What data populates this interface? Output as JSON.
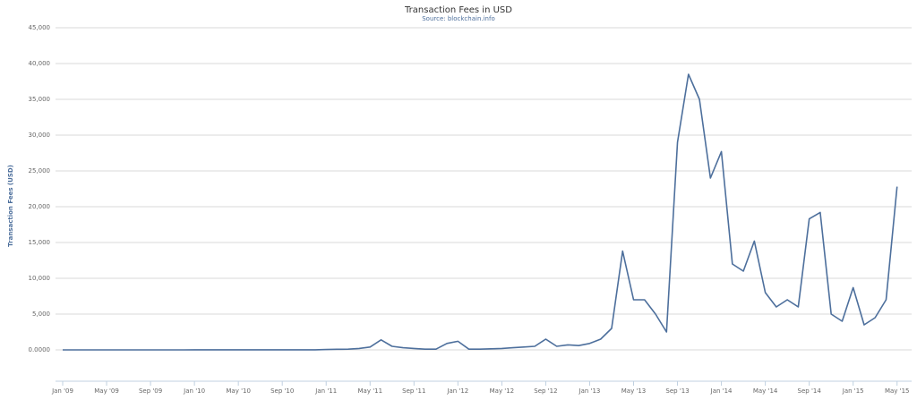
{
  "chart_data": {
    "type": "line",
    "title": "Transaction Fees in USD",
    "subtitle": "Source: blockchain.info",
    "y_label": "Transaction Fees (USD)",
    "color": "#4d6f9c",
    "grid": true,
    "xlim": [
      "2009-01",
      "2015-06"
    ],
    "ylim": [
      0,
      45000
    ],
    "yticks": [
      {
        "value": 0,
        "label": "0.0000"
      },
      {
        "value": 5000,
        "label": "5,000"
      },
      {
        "value": 10000,
        "label": "10,000"
      },
      {
        "value": 15000,
        "label": "15,000"
      },
      {
        "value": 20000,
        "label": "20,000"
      },
      {
        "value": 25000,
        "label": "25,000"
      },
      {
        "value": 30000,
        "label": "30,000"
      },
      {
        "value": 35000,
        "label": "35,000"
      },
      {
        "value": 40000,
        "label": "40,000"
      },
      {
        "value": 45000,
        "label": "45,000"
      }
    ],
    "xticks": [
      {
        "value": "2009-01",
        "label": "Jan '09"
      },
      {
        "value": "2009-05",
        "label": "May '09"
      },
      {
        "value": "2009-09",
        "label": "Sep '09"
      },
      {
        "value": "2010-01",
        "label": "Jan '10"
      },
      {
        "value": "2010-05",
        "label": "May '10"
      },
      {
        "value": "2010-09",
        "label": "Sep '10"
      },
      {
        "value": "2011-01",
        "label": "Jan '11"
      },
      {
        "value": "2011-05",
        "label": "May '11"
      },
      {
        "value": "2011-09",
        "label": "Sep '11"
      },
      {
        "value": "2012-01",
        "label": "Jan '12"
      },
      {
        "value": "2012-05",
        "label": "May '12"
      },
      {
        "value": "2012-09",
        "label": "Sep '12"
      },
      {
        "value": "2013-01",
        "label": "Jan '13"
      },
      {
        "value": "2013-05",
        "label": "May '13"
      },
      {
        "value": "2013-09",
        "label": "Sep '13"
      },
      {
        "value": "2014-01",
        "label": "Jan '14"
      },
      {
        "value": "2014-05",
        "label": "May '14"
      },
      {
        "value": "2014-09",
        "label": "Sep '14"
      },
      {
        "value": "2015-01",
        "label": "Jan '15"
      },
      {
        "value": "2015-05",
        "label": "May '15"
      }
    ],
    "x": [
      "2009-01",
      "2009-02",
      "2009-03",
      "2009-04",
      "2009-05",
      "2009-06",
      "2009-07",
      "2009-08",
      "2009-09",
      "2009-10",
      "2009-11",
      "2009-12",
      "2010-01",
      "2010-02",
      "2010-03",
      "2010-04",
      "2010-05",
      "2010-06",
      "2010-07",
      "2010-08",
      "2010-09",
      "2010-10",
      "2010-11",
      "2010-12",
      "2011-01",
      "2011-02",
      "2011-03",
      "2011-04",
      "2011-05",
      "2011-06",
      "2011-07",
      "2011-08",
      "2011-09",
      "2011-10",
      "2011-11",
      "2011-12",
      "2012-01",
      "2012-02",
      "2012-03",
      "2012-04",
      "2012-05",
      "2012-06",
      "2012-07",
      "2012-08",
      "2012-09",
      "2012-10",
      "2012-11",
      "2012-12",
      "2013-01",
      "2013-02",
      "2013-03",
      "2013-04",
      "2013-05",
      "2013-06",
      "2013-07",
      "2013-08",
      "2013-09",
      "2013-10",
      "2013-11",
      "2013-12",
      "2014-01",
      "2014-02",
      "2014-03",
      "2014-04",
      "2014-05",
      "2014-06",
      "2014-07",
      "2014-08",
      "2014-09",
      "2014-10",
      "2014-11",
      "2014-12",
      "2015-01",
      "2015-02",
      "2015-03",
      "2015-04",
      "2015-05"
    ],
    "values": [
      0,
      0,
      0,
      0,
      0,
      0,
      0,
      0,
      0,
      0,
      0,
      0,
      5,
      5,
      5,
      5,
      5,
      5,
      5,
      5,
      5,
      5,
      5,
      5,
      50,
      80,
      100,
      200,
      400,
      1400,
      500,
      300,
      200,
      100,
      100,
      900,
      1200,
      100,
      100,
      150,
      200,
      300,
      400,
      500,
      1500,
      500,
      700,
      600,
      900,
      1500,
      3000,
      13800,
      7000,
      7000,
      5000,
      2500,
      29000,
      38500,
      35000,
      24000,
      27700,
      12000,
      11000,
      15200,
      8000,
      6000,
      7000,
      6000,
      18300,
      19200,
      5000,
      4000,
      8700,
      3500,
      4500,
      7000,
      22800
    ]
  }
}
